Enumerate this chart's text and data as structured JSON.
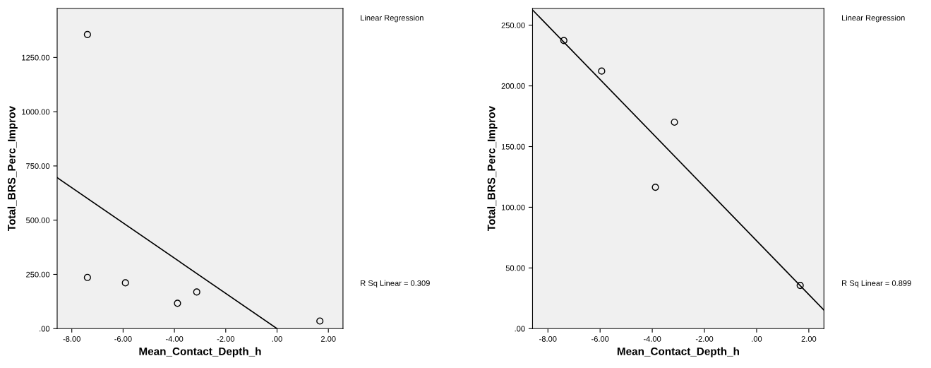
{
  "chart_data": [
    {
      "type": "scatter",
      "xlabel": "Mean_Contact_Depth_h",
      "ylabel": "Total_BRS_Perc_Improv",
      "annotations": [
        "Linear Regression",
        "R Sq Linear = 0.309"
      ],
      "xlim": [
        -8.57,
        2.57
      ],
      "ylim": [
        0,
        1476
      ],
      "xticks": [
        {
          "value": -8,
          "label": "-8.00"
        },
        {
          "value": -6,
          "label": "-6.00"
        },
        {
          "value": -4,
          "label": "-4.00"
        },
        {
          "value": -2,
          "label": "-2.00"
        },
        {
          "value": 0,
          "label": ".00"
        },
        {
          "value": 2,
          "label": "2.00"
        }
      ],
      "yticks": [
        {
          "value": 0,
          "label": ".00"
        },
        {
          "value": 250,
          "label": "250.00"
        },
        {
          "value": 500,
          "label": "500.00"
        },
        {
          "value": 750,
          "label": "750.00"
        },
        {
          "value": 1000,
          "label": "1000.00"
        },
        {
          "value": 1250,
          "label": "1250.00"
        }
      ],
      "grid": false,
      "legend": false,
      "marker": "circle",
      "series": [
        {
          "color": "#000000",
          "x": [
            -7.39,
            -7.39,
            -5.91,
            -3.88,
            -3.13,
            1.67
          ],
          "values": [
            1356,
            236,
            211,
            117,
            169,
            35
          ]
        },
        {
          "type": "line",
          "color": "#000000",
          "marker": "none",
          "x": [
            -8.57,
            0.0
          ],
          "values": [
            696,
            0
          ]
        }
      ]
    },
    {
      "type": "scatter",
      "xlabel": "Mean_Contact_Depth_h",
      "ylabel": "Total_BRS_Perc_Improv",
      "annotations": [
        "Linear Regression",
        "R Sq Linear = 0.899"
      ],
      "xlim": [
        -8.59,
        2.58
      ],
      "ylim": [
        0,
        263.8
      ],
      "xticks": [
        {
          "value": -8,
          "label": "-8.00"
        },
        {
          "value": -6,
          "label": "-6.00"
        },
        {
          "value": -4,
          "label": "-4.00"
        },
        {
          "value": -2,
          "label": "-2.00"
        },
        {
          "value": 0,
          "label": ".00"
        },
        {
          "value": 2,
          "label": "2.00"
        }
      ],
      "yticks": [
        {
          "value": 0,
          "label": ".00"
        },
        {
          "value": 50,
          "label": "50.00"
        },
        {
          "value": 100,
          "label": "100.00"
        },
        {
          "value": 150,
          "label": "150.00"
        },
        {
          "value": 200,
          "label": "200.00"
        },
        {
          "value": 250,
          "label": "250.00"
        }
      ],
      "grid": false,
      "legend": false,
      "marker": "circle",
      "series": [
        {
          "color": "#000000",
          "x": [
            -7.39,
            -5.94,
            -3.88,
            -3.15,
            1.67
          ],
          "values": [
            237.4,
            212.2,
            116.5,
            170.1,
            35.6
          ]
        },
        {
          "type": "line",
          "color": "#000000",
          "marker": "none",
          "x": [
            -8.59,
            2.58
          ],
          "values": [
            262.6,
            15.3
          ]
        }
      ]
    }
  ]
}
